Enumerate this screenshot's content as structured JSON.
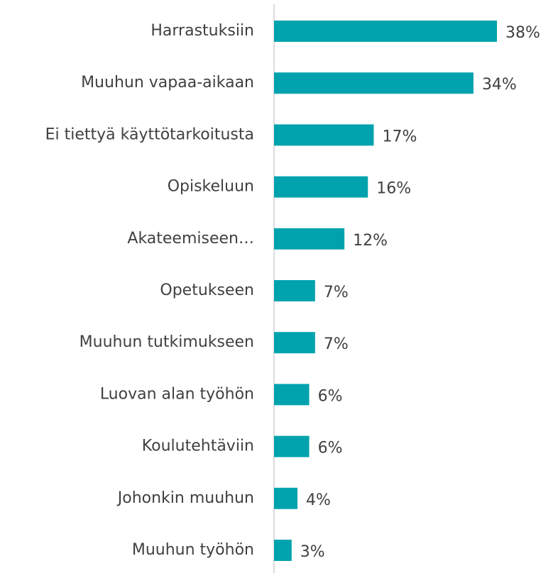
{
  "chart_data": {
    "type": "bar",
    "orientation": "horizontal",
    "categories": [
      "Harrastuksiin",
      "Muuhun vapaa-aikaan",
      "Ei tiettyä käyttötarkoitusta",
      "Opiskeluun",
      "Akateemiseen…",
      "Opetukseen",
      "Muuhun tutkimukseen",
      "Luovan alan työhön",
      "Koulutehtäviin",
      "Johonkin muuhun",
      "Muuhun työhön"
    ],
    "values": [
      38,
      34,
      17,
      16,
      12,
      7,
      7,
      6,
      6,
      4,
      3
    ],
    "value_labels": [
      "38%",
      "34%",
      "17%",
      "16%",
      "12%",
      "7%",
      "7%",
      "6%",
      "6%",
      "4%",
      "3%"
    ],
    "color": "#00a3ad",
    "xlim": [
      0,
      38
    ]
  }
}
